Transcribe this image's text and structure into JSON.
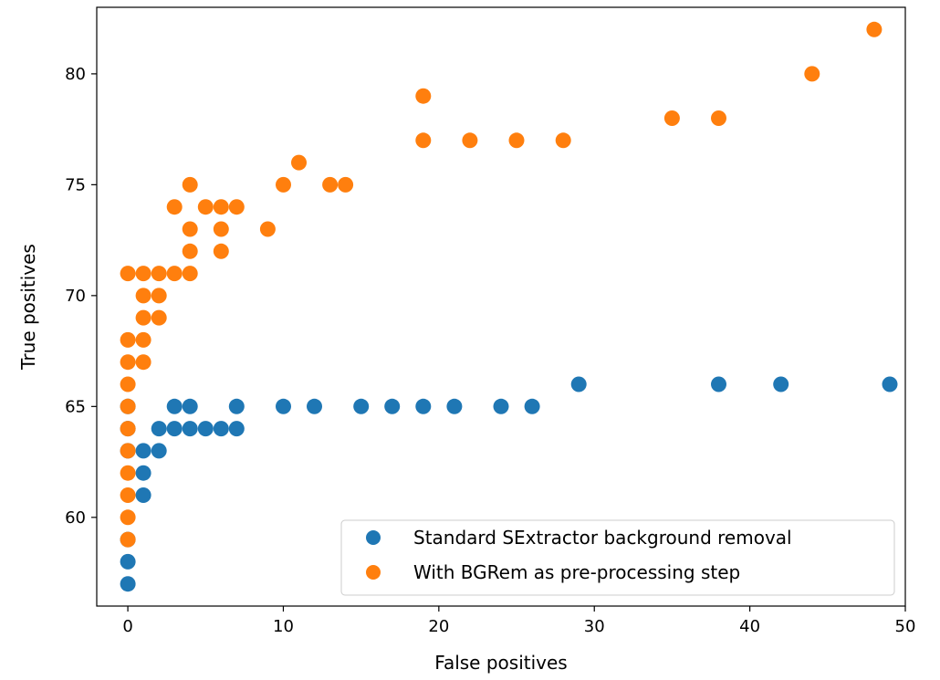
{
  "chart_data": {
    "type": "scatter",
    "title": "",
    "xlabel": "False positives",
    "ylabel": "True positives",
    "xlim": [
      -2,
      50
    ],
    "ylim": [
      56,
      83
    ],
    "xticks": [
      0,
      10,
      20,
      30,
      40,
      50
    ],
    "yticks": [
      60,
      65,
      70,
      75,
      80
    ],
    "grid": false,
    "legend_position": "lower-right",
    "series": [
      {
        "name": "Standard SExtractor background removal",
        "color": "#1f77b4",
        "points": [
          [
            0,
            57
          ],
          [
            0,
            58
          ],
          [
            0,
            59
          ],
          [
            0,
            63
          ],
          [
            0,
            64
          ],
          [
            0,
            65
          ],
          [
            1,
            61
          ],
          [
            1,
            62
          ],
          [
            1,
            63
          ],
          [
            2,
            63
          ],
          [
            2,
            64
          ],
          [
            3,
            64
          ],
          [
            3,
            65
          ],
          [
            4,
            64
          ],
          [
            4,
            65
          ],
          [
            5,
            64
          ],
          [
            6,
            64
          ],
          [
            7,
            64
          ],
          [
            7,
            65
          ],
          [
            10,
            65
          ],
          [
            12,
            65
          ],
          [
            15,
            65
          ],
          [
            17,
            65
          ],
          [
            19,
            65
          ],
          [
            21,
            65
          ],
          [
            24,
            65
          ],
          [
            26,
            65
          ],
          [
            29,
            66
          ],
          [
            38,
            66
          ],
          [
            42,
            66
          ],
          [
            49,
            66
          ]
        ]
      },
      {
        "name": "With BGRem as pre-processing step",
        "color": "#ff7f0e",
        "points": [
          [
            0,
            59
          ],
          [
            0,
            60
          ],
          [
            0,
            61
          ],
          [
            0,
            62
          ],
          [
            0,
            63
          ],
          [
            0,
            64
          ],
          [
            0,
            65
          ],
          [
            0,
            66
          ],
          [
            0,
            67
          ],
          [
            0,
            68
          ],
          [
            0,
            71
          ],
          [
            1,
            67
          ],
          [
            1,
            68
          ],
          [
            1,
            69
          ],
          [
            1,
            70
          ],
          [
            1,
            71
          ],
          [
            2,
            69
          ],
          [
            2,
            70
          ],
          [
            2,
            71
          ],
          [
            3,
            71
          ],
          [
            3,
            74
          ],
          [
            4,
            71
          ],
          [
            4,
            72
          ],
          [
            4,
            73
          ],
          [
            4,
            75
          ],
          [
            5,
            74
          ],
          [
            6,
            72
          ],
          [
            6,
            73
          ],
          [
            6,
            74
          ],
          [
            7,
            74
          ],
          [
            9,
            73
          ],
          [
            10,
            75
          ],
          [
            11,
            76
          ],
          [
            13,
            75
          ],
          [
            14,
            75
          ],
          [
            19,
            77
          ],
          [
            19,
            79
          ],
          [
            22,
            77
          ],
          [
            25,
            77
          ],
          [
            28,
            77
          ],
          [
            35,
            78
          ],
          [
            38,
            78
          ],
          [
            44,
            80
          ],
          [
            48,
            82
          ]
        ]
      }
    ]
  }
}
